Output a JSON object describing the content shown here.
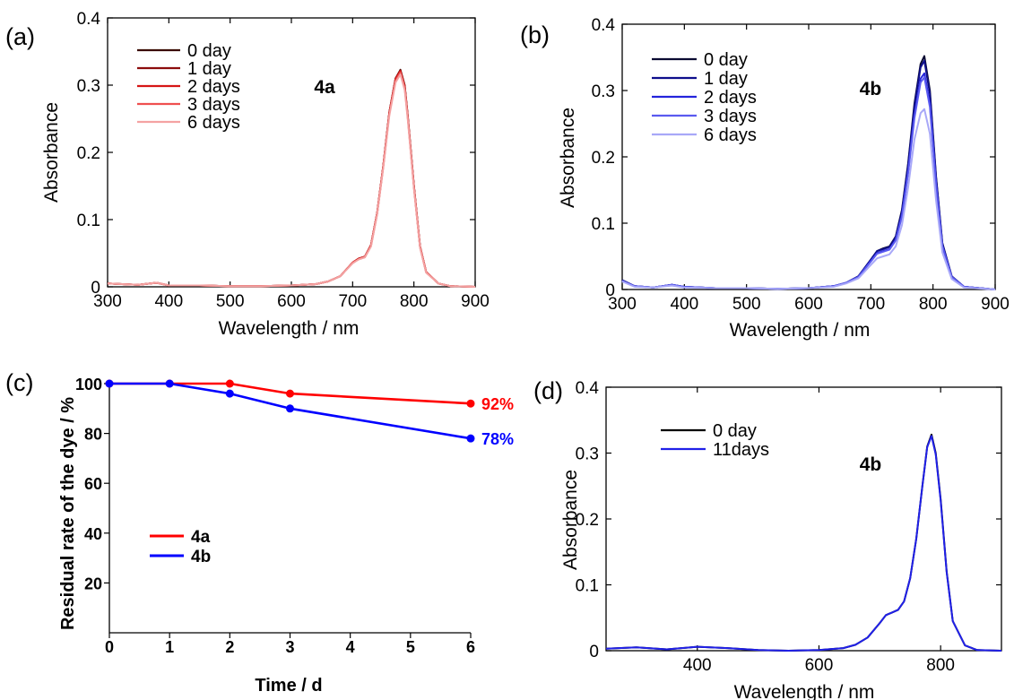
{
  "chart_data": [
    {
      "panel": "(a)",
      "type": "line",
      "xlabel": "Wavelength / nm",
      "ylabel": "Absorbance",
      "xlim": [
        300,
        900
      ],
      "ylim": [
        0,
        0.4
      ],
      "xticks": [
        300,
        400,
        500,
        600,
        700,
        800,
        900
      ],
      "yticks": [
        0,
        0.1,
        0.2,
        0.3,
        0.4
      ],
      "ytick_labels": [
        "0",
        "0.1",
        "0.2",
        "0.3",
        "0.4"
      ],
      "annotation": "4a",
      "legend_position": "top-left",
      "x": [
        300,
        350,
        380,
        400,
        450,
        500,
        550,
        600,
        640,
        660,
        680,
        700,
        710,
        720,
        730,
        740,
        750,
        760,
        770,
        778,
        785,
        790,
        800,
        810,
        820,
        840,
        860,
        900
      ],
      "series": [
        {
          "name": "0 day",
          "color": "#3a0a00",
          "values": [
            0.005,
            0.003,
            0.006,
            0.002,
            0.002,
            0.001,
            0.001,
            0.002,
            0.004,
            0.008,
            0.016,
            0.036,
            0.042,
            0.045,
            0.062,
            0.11,
            0.18,
            0.26,
            0.31,
            0.323,
            0.3,
            0.255,
            0.15,
            0.06,
            0.022,
            0.005,
            0.001,
            0.0
          ]
        },
        {
          "name": "1 day",
          "color": "#8c0c0c",
          "values": [
            0.005,
            0.003,
            0.006,
            0.002,
            0.002,
            0.001,
            0.001,
            0.002,
            0.004,
            0.008,
            0.016,
            0.036,
            0.042,
            0.045,
            0.062,
            0.11,
            0.18,
            0.26,
            0.31,
            0.322,
            0.299,
            0.254,
            0.15,
            0.06,
            0.022,
            0.005,
            0.001,
            0.0
          ]
        },
        {
          "name": "2 days",
          "color": "#d61515",
          "values": [
            0.005,
            0.003,
            0.006,
            0.002,
            0.002,
            0.001,
            0.001,
            0.002,
            0.004,
            0.008,
            0.016,
            0.036,
            0.042,
            0.045,
            0.062,
            0.11,
            0.18,
            0.259,
            0.309,
            0.321,
            0.298,
            0.253,
            0.149,
            0.06,
            0.022,
            0.005,
            0.001,
            0.0
          ]
        },
        {
          "name": "3 days",
          "color": "#ef5050",
          "values": [
            0.005,
            0.003,
            0.006,
            0.002,
            0.002,
            0.001,
            0.001,
            0.002,
            0.004,
            0.008,
            0.016,
            0.036,
            0.041,
            0.044,
            0.061,
            0.109,
            0.179,
            0.258,
            0.307,
            0.319,
            0.296,
            0.252,
            0.148,
            0.059,
            0.022,
            0.005,
            0.001,
            0.0
          ]
        },
        {
          "name": "6 days",
          "color": "#f4a2a2",
          "values": [
            0.005,
            0.003,
            0.006,
            0.002,
            0.002,
            0.001,
            0.001,
            0.002,
            0.004,
            0.008,
            0.016,
            0.035,
            0.041,
            0.044,
            0.06,
            0.108,
            0.177,
            0.255,
            0.304,
            0.316,
            0.293,
            0.249,
            0.146,
            0.058,
            0.021,
            0.005,
            0.001,
            0.0
          ]
        }
      ]
    },
    {
      "panel": "(b)",
      "type": "line",
      "xlabel": "Wavelength / nm",
      "ylabel": "Absorbance",
      "xlim": [
        300,
        900
      ],
      "ylim": [
        0,
        0.4
      ],
      "xticks": [
        300,
        400,
        500,
        600,
        700,
        800,
        900
      ],
      "yticks": [
        0,
        0.1,
        0.2,
        0.3,
        0.4
      ],
      "ytick_labels": [
        "0",
        "0.1",
        "0.2",
        "0.3",
        "0.4"
      ],
      "annotation": "4b",
      "legend_position": "top-left",
      "x": [
        300,
        320,
        350,
        380,
        400,
        450,
        500,
        550,
        600,
        640,
        660,
        680,
        700,
        710,
        720,
        730,
        740,
        750,
        760,
        770,
        780,
        786,
        795,
        805,
        815,
        830,
        850,
        900
      ],
      "series": [
        {
          "name": "0 day",
          "color": "#0a0a32",
          "values": [
            0.014,
            0.005,
            0.003,
            0.007,
            0.004,
            0.002,
            0.002,
            0.001,
            0.002,
            0.005,
            0.01,
            0.02,
            0.045,
            0.058,
            0.062,
            0.065,
            0.08,
            0.12,
            0.19,
            0.28,
            0.34,
            0.352,
            0.3,
            0.17,
            0.07,
            0.02,
            0.004,
            0.0
          ]
        },
        {
          "name": "1 day",
          "color": "#0e0e8c",
          "values": [
            0.014,
            0.005,
            0.003,
            0.007,
            0.004,
            0.002,
            0.002,
            0.001,
            0.002,
            0.005,
            0.01,
            0.02,
            0.045,
            0.058,
            0.061,
            0.064,
            0.079,
            0.118,
            0.187,
            0.276,
            0.335,
            0.345,
            0.295,
            0.168,
            0.069,
            0.02,
            0.004,
            0.0
          ]
        },
        {
          "name": "2 days",
          "color": "#2424dc",
          "values": [
            0.013,
            0.005,
            0.003,
            0.007,
            0.004,
            0.002,
            0.002,
            0.001,
            0.002,
            0.005,
            0.01,
            0.019,
            0.043,
            0.055,
            0.058,
            0.061,
            0.075,
            0.112,
            0.178,
            0.262,
            0.318,
            0.326,
            0.28,
            0.16,
            0.066,
            0.019,
            0.004,
            0.0
          ]
        },
        {
          "name": "3 days",
          "color": "#5a5af0",
          "values": [
            0.013,
            0.005,
            0.003,
            0.007,
            0.004,
            0.002,
            0.002,
            0.001,
            0.002,
            0.005,
            0.01,
            0.019,
            0.042,
            0.054,
            0.057,
            0.06,
            0.074,
            0.11,
            0.175,
            0.258,
            0.312,
            0.32,
            0.275,
            0.157,
            0.065,
            0.019,
            0.004,
            0.0
          ]
        },
        {
          "name": "6 days",
          "color": "#a8a8f8",
          "values": [
            0.012,
            0.004,
            0.003,
            0.006,
            0.003,
            0.002,
            0.002,
            0.001,
            0.002,
            0.004,
            0.009,
            0.017,
            0.037,
            0.047,
            0.05,
            0.053,
            0.065,
            0.097,
            0.154,
            0.226,
            0.266,
            0.272,
            0.235,
            0.134,
            0.056,
            0.016,
            0.003,
            0.0
          ]
        }
      ]
    },
    {
      "panel": "(c)",
      "type": "line",
      "xlabel": "Time / d",
      "ylabel": "Residual rate of the dye / %",
      "xlim": [
        0,
        6
      ],
      "ylim": [
        0,
        100
      ],
      "xticks": [
        0,
        1,
        2,
        3,
        4,
        5,
        6
      ],
      "yticks": [
        20,
        40,
        60,
        80,
        100
      ],
      "ytick_labels": [
        "20",
        "40",
        "60",
        "80",
        "100"
      ],
      "legend_position": "lower-left",
      "x": [
        0,
        1,
        2,
        3,
        6
      ],
      "series": [
        {
          "name": "4a",
          "color": "#ff0000",
          "values": [
            100,
            100,
            100,
            96,
            92
          ],
          "end_label": "92%"
        },
        {
          "name": "4b",
          "color": "#0000ff",
          "values": [
            100,
            100,
            96,
            90,
            78
          ],
          "end_label": "78%"
        }
      ]
    },
    {
      "panel": "(d)",
      "type": "line",
      "xlabel": "Wavelength / nm",
      "ylabel": "Absorbance",
      "xlim": [
        250,
        900
      ],
      "ylim": [
        0,
        0.4
      ],
      "xticks": [
        400,
        600,
        800
      ],
      "yticks": [
        0,
        0.1,
        0.2,
        0.3,
        0.4
      ],
      "ytick_labels": [
        "0",
        "0.1",
        "0.2",
        "0.3",
        "0.4"
      ],
      "annotation": "4b",
      "legend_position": "top-left",
      "x": [
        250,
        300,
        350,
        400,
        450,
        500,
        550,
        600,
        640,
        660,
        680,
        700,
        710,
        720,
        730,
        740,
        750,
        760,
        770,
        778,
        785,
        792,
        800,
        810,
        820,
        840,
        860,
        900
      ],
      "series": [
        {
          "name": "0 day",
          "color": "#000000",
          "values": [
            0.003,
            0.005,
            0.002,
            0.006,
            0.004,
            0.001,
            0.0,
            0.001,
            0.004,
            0.009,
            0.02,
            0.042,
            0.054,
            0.058,
            0.062,
            0.075,
            0.11,
            0.17,
            0.25,
            0.31,
            0.328,
            0.3,
            0.23,
            0.12,
            0.045,
            0.008,
            0.001,
            0.0
          ]
        },
        {
          "name": "11days",
          "color": "#2020e8",
          "values": [
            0.003,
            0.005,
            0.002,
            0.006,
            0.004,
            0.001,
            0.0,
            0.001,
            0.004,
            0.009,
            0.02,
            0.042,
            0.054,
            0.058,
            0.062,
            0.075,
            0.11,
            0.17,
            0.25,
            0.309,
            0.326,
            0.298,
            0.228,
            0.119,
            0.045,
            0.008,
            0.001,
            0.0
          ]
        }
      ]
    }
  ]
}
